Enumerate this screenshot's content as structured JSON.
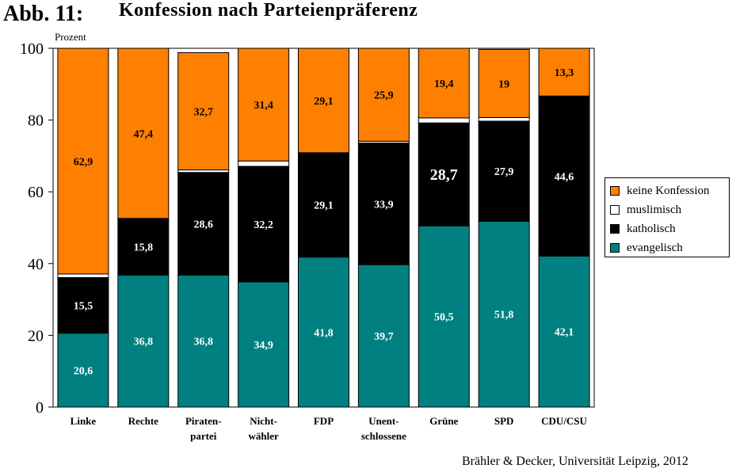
{
  "figure_label": "Abb. 11:",
  "source_note": "Brähler & Decker, Universität Leipzig, 2012",
  "colors": {
    "keine_konfession": "#ff8000",
    "muslimisch": "#ffffff",
    "katholisch": "#000000",
    "evangelisch": "#008080"
  },
  "chart_data": {
    "type": "bar",
    "stacked": true,
    "title": "Konfession nach Parteienpräferenz",
    "ylabel": "Prozent",
    "xlabel": "",
    "ylim": [
      0,
      100
    ],
    "yticks": [
      0,
      20,
      40,
      60,
      80,
      100
    ],
    "grid": false,
    "legend_position": "right",
    "categories": [
      "Linke",
      "Rechte",
      "Piraten-\npartei",
      "Nicht-\nwähler",
      "FDP",
      "Unent-\nschlossene",
      "Grüne",
      "SPD",
      "CDU/CSU"
    ],
    "series": [
      {
        "name": "evangelisch",
        "color": "#008080",
        "values": [
          20.6,
          36.8,
          36.8,
          34.9,
          41.8,
          39.7,
          50.5,
          51.8,
          42.1
        ],
        "labels": [
          "20,6",
          "36,8",
          "36,8",
          "34,9",
          "41,8",
          "39,7",
          "50,5",
          "51,8",
          "42,1"
        ]
      },
      {
        "name": "katholisch",
        "color": "#000000",
        "values": [
          15.5,
          15.8,
          28.6,
          32.2,
          29.1,
          33.9,
          28.7,
          27.9,
          44.6
        ],
        "labels": [
          "15,5",
          "15,8",
          "28,6",
          "32,2",
          "29,1",
          "33,9",
          "28,7",
          "27,9",
          "44,6"
        ]
      },
      {
        "name": "muslimisch",
        "color": "#ffffff",
        "values": [
          1.0,
          0.0,
          0.7,
          1.5,
          0.0,
          0.5,
          1.4,
          1.0,
          0.0
        ],
        "labels": [
          "",
          "",
          "",
          "",
          "",
          "",
          "",
          "",
          ""
        ]
      },
      {
        "name": "keine Konfession",
        "color": "#ff8000",
        "values": [
          62.9,
          47.4,
          32.7,
          31.4,
          29.1,
          25.9,
          19.4,
          19,
          13.3
        ],
        "labels": [
          "62,9",
          "47,4",
          "32,7",
          "31,4",
          "29,1",
          "25,9",
          "19,4",
          "19",
          "13,3"
        ]
      }
    ],
    "legend": [
      "keine Konfession",
      "muslimisch",
      "katholisch",
      "evangelisch"
    ]
  }
}
